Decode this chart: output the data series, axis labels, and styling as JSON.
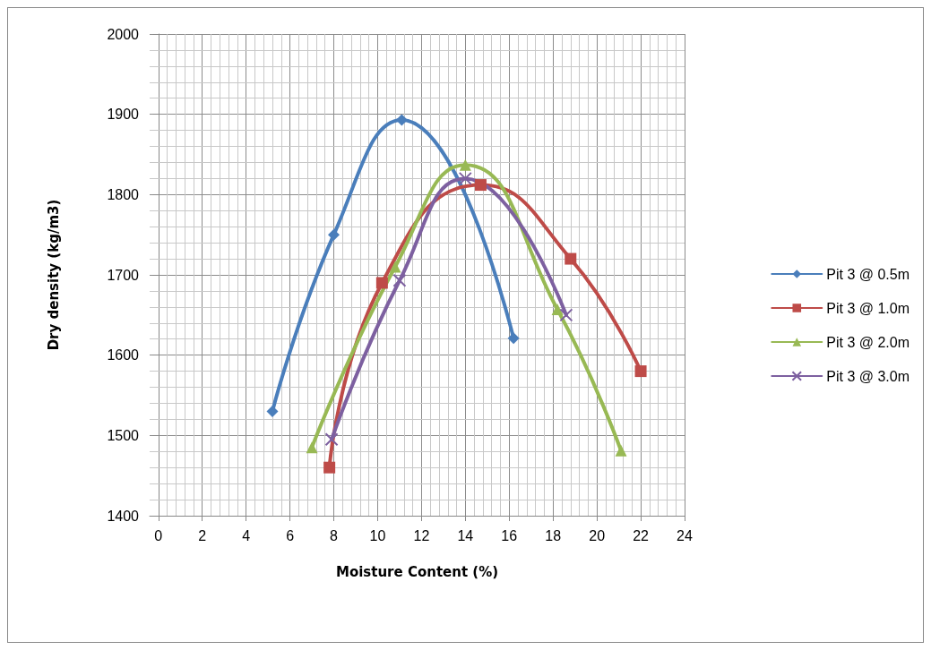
{
  "chart_data": {
    "type": "line",
    "xlabel": "Moisture Content (%)",
    "ylabel": "Dry density (kg/m3)",
    "xlim": [
      -0.4,
      24
    ],
    "xticks": [
      0,
      2,
      4,
      6,
      8,
      10,
      12,
      14,
      16,
      18,
      20,
      22,
      24
    ],
    "ylim": [
      1400,
      2000
    ],
    "yticks": [
      1400,
      1500,
      1600,
      1700,
      1800,
      1900,
      2000
    ],
    "grid": true,
    "legend": "right",
    "series": [
      {
        "name": "Pit 3 @ 0.5m",
        "color": "#4a7ebb",
        "marker": "diamond",
        "x": [
          5.2,
          8,
          11.1,
          16.2
        ],
        "values": [
          1530,
          1750,
          1893,
          1621
        ]
      },
      {
        "name": "Pit 3 @ 1.0m",
        "color": "#be4b48",
        "marker": "square",
        "x": [
          7.8,
          10.2,
          14.7,
          18.8,
          22
        ],
        "values": [
          1460,
          1690,
          1812,
          1720,
          1580
        ]
      },
      {
        "name": "Pit 3 @ 2.0m",
        "color": "#98b954",
        "marker": "triangle",
        "x": [
          7.0,
          10.8,
          14,
          18.2,
          21.1
        ],
        "values": [
          1485,
          1710,
          1837,
          1657,
          1481
        ]
      },
      {
        "name": "Pit 3 @ 3.0m",
        "color": "#7d60a0",
        "marker": "cross",
        "x": [
          7.9,
          11,
          14,
          18.6
        ],
        "values": [
          1495,
          1693,
          1820,
          1650
        ]
      }
    ]
  }
}
